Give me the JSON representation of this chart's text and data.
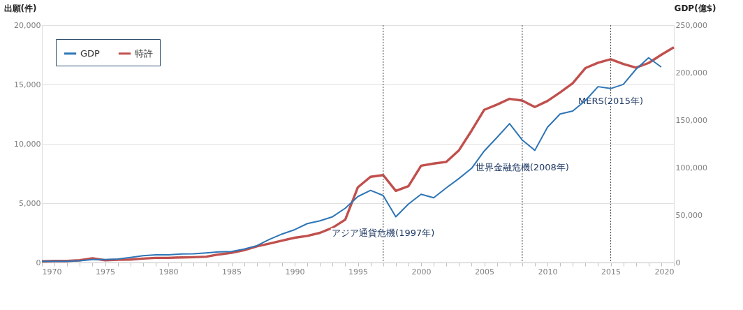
{
  "chart_data": {
    "type": "line",
    "ylabel": "出願(件)",
    "y2label": "GDP(億$)",
    "x": [
      1970,
      1971,
      1972,
      1973,
      1974,
      1975,
      1976,
      1977,
      1978,
      1979,
      1980,
      1981,
      1982,
      1983,
      1984,
      1985,
      1986,
      1987,
      1988,
      1989,
      1990,
      1991,
      1992,
      1993,
      1994,
      1995,
      1996,
      1997,
      1998,
      1999,
      2000,
      2001,
      2002,
      2003,
      2004,
      2005,
      2006,
      2007,
      2008,
      2009,
      2010,
      2011,
      2012,
      2013,
      2014,
      2015,
      2016,
      2017,
      2018,
      2019,
      2020
    ],
    "series": [
      {
        "name": "GDP",
        "color": "#2e75b6",
        "axis": "y2",
        "values": [
          1200,
          1200,
          1200,
          1900,
          3100,
          3100,
          3700,
          5400,
          7200,
          8000,
          8000,
          9000,
          9200,
          10200,
          11200,
          11600,
          14100,
          17700,
          24400,
          30000,
          34600,
          41000,
          43900,
          48200,
          57200,
          69500,
          76000,
          70600,
          48200,
          61600,
          71900,
          68200,
          78700,
          88500,
          99200,
          117500,
          131600,
          146200,
          129100,
          118100,
          142500,
          156400,
          159600,
          170600,
          185200,
          183200,
          187600,
          203500,
          215600,
          205900,
          null
        ]
      },
      {
        "name": "特許",
        "color": "#c0504d",
        "values": [
          100,
          130,
          130,
          190,
          350,
          190,
          230,
          250,
          330,
          390,
          390,
          430,
          450,
          490,
          680,
          820,
          1040,
          1360,
          1600,
          1850,
          2090,
          2240,
          2500,
          2930,
          3610,
          6340,
          7220,
          7370,
          6040,
          6430,
          8150,
          8340,
          8480,
          9460,
          11120,
          12870,
          13300,
          13790,
          13650,
          13100,
          13610,
          14330,
          15110,
          16380,
          16830,
          17120,
          16730,
          16420,
          16810,
          17500,
          18130
        ]
      }
    ],
    "xlim": [
      1970,
      2020
    ],
    "xticks": [
      1970,
      {
        "value": 1971,
        "label": null
      },
      {
        "value": 1972,
        "label": null
      },
      {
        "value": 1973,
        "label": null
      },
      {
        "value": 1974,
        "label": null
      },
      1975,
      {
        "value": 1976,
        "label": null
      },
      {
        "value": 1977,
        "label": null
      },
      {
        "value": 1978,
        "label": null
      },
      {
        "value": 1979,
        "label": null
      },
      1980,
      {
        "value": 1981,
        "label": null
      },
      {
        "value": 1982,
        "label": null
      },
      {
        "value": 1983,
        "label": null
      },
      {
        "value": 1984,
        "label": null
      },
      1985,
      {
        "value": 1986,
        "label": null
      },
      {
        "value": 1987,
        "label": null
      },
      {
        "value": 1988,
        "label": null
      },
      {
        "value": 1989,
        "label": null
      },
      1990,
      {
        "value": 1991,
        "label": null
      },
      {
        "value": 1992,
        "label": null
      },
      {
        "value": 1993,
        "label": null
      },
      {
        "value": 1994,
        "label": null
      },
      1995,
      {
        "value": 1996,
        "label": null
      },
      {
        "value": 1997,
        "label": null
      },
      {
        "value": 1998,
        "label": null
      },
      {
        "value": 1999,
        "label": null
      },
      2000,
      {
        "value": 2001,
        "label": null
      },
      {
        "value": 2002,
        "label": null
      },
      {
        "value": 2003,
        "label": null
      },
      {
        "value": 2004,
        "label": null
      },
      2005,
      {
        "value": 2006,
        "label": null
      },
      {
        "value": 2007,
        "label": null
      },
      {
        "value": 2008,
        "label": null
      },
      {
        "value": 2009,
        "label": null
      },
      2010,
      {
        "value": 2011,
        "label": null
      },
      {
        "value": 2012,
        "label": null
      },
      {
        "value": 2013,
        "label": null
      },
      {
        "value": 2014,
        "label": null
      },
      2015,
      {
        "value": 2016,
        "label": null
      },
      {
        "value": 2017,
        "label": null
      },
      {
        "value": 2018,
        "label": null
      },
      {
        "value": 2019,
        "label": null
      },
      2020
    ],
    "ylim": [
      0,
      20000
    ],
    "yticks": [
      0,
      {
        "value": 5000,
        "label": "5,000"
      },
      {
        "value": 10000,
        "label": "10,000"
      },
      {
        "value": 15000,
        "label": "15,000"
      },
      {
        "value": 20000,
        "label": "20,000"
      }
    ],
    "y2lim": [
      0,
      250000
    ],
    "y2ticks": [
      0,
      {
        "value": 50000,
        "label": "50,000"
      },
      {
        "value": 100000,
        "label": "100,000"
      },
      {
        "value": 150000,
        "label": "150,000"
      },
      {
        "value": 200000,
        "label": "200,000"
      },
      {
        "value": 250000,
        "label": "250,000"
      }
    ],
    "ref_lines": [
      {
        "axis": "x",
        "value": 1997,
        "color": "#595959",
        "line_style": "dotted"
      },
      {
        "axis": "x",
        "value": 2008,
        "color": "#595959",
        "line_style": "dotted"
      },
      {
        "axis": "x",
        "value": 2015,
        "color": "#595959",
        "line_style": "dotted"
      }
    ],
    "annotations": [
      {
        "text": "アジア通貨危機(1997年)",
        "x": 1997,
        "y": 2500
      },
      {
        "text": "世界金融危機(2008年)",
        "x": 2008,
        "y": 8000
      },
      {
        "text": "MERS(2015年)",
        "x": 2015,
        "y": 13600
      }
    ],
    "grid": "y",
    "legend": "top left",
    "line_style": "solid"
  }
}
